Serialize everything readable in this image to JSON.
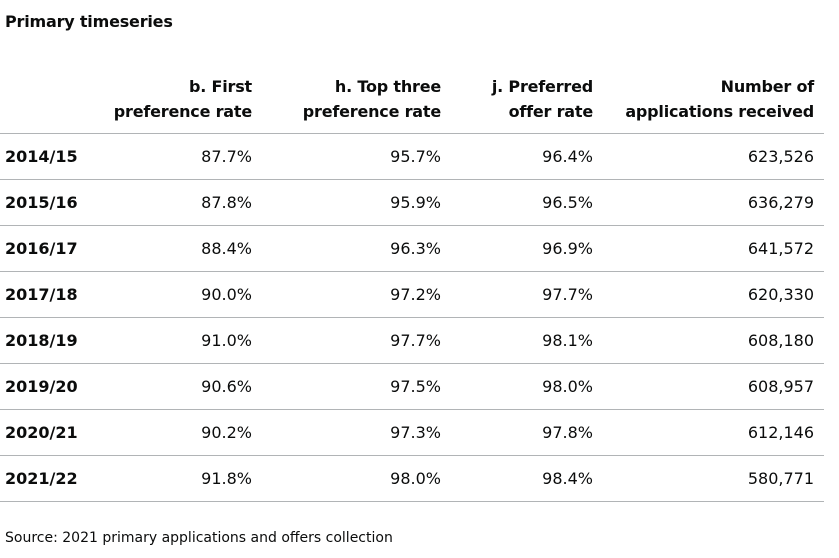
{
  "table": {
    "title": "Primary timeseries",
    "columns": [
      {
        "line1": "b. First",
        "line2": "preference rate"
      },
      {
        "line1": "h. Top three",
        "line2": "preference rate"
      },
      {
        "line1": "j. Preferred",
        "line2": "offer rate"
      },
      {
        "line1": "Number of",
        "line2": "applications received"
      }
    ],
    "rows": [
      {
        "year": "2014/15",
        "first": "87.7%",
        "top3": "95.7%",
        "preferred": "96.4%",
        "apps": "623,526"
      },
      {
        "year": "2015/16",
        "first": "87.8%",
        "top3": "95.9%",
        "preferred": "96.5%",
        "apps": "636,279"
      },
      {
        "year": "2016/17",
        "first": "88.4%",
        "top3": "96.3%",
        "preferred": "96.9%",
        "apps": "641,572"
      },
      {
        "year": "2017/18",
        "first": "90.0%",
        "top3": "97.2%",
        "preferred": "97.7%",
        "apps": "620,330"
      },
      {
        "year": "2018/19",
        "first": "91.0%",
        "top3": "97.7%",
        "preferred": "98.1%",
        "apps": "608,180"
      },
      {
        "year": "2019/20",
        "first": "90.6%",
        "top3": "97.5%",
        "preferred": "98.0%",
        "apps": "608,957"
      },
      {
        "year": "2020/21",
        "first": "90.2%",
        "top3": "97.3%",
        "preferred": "97.8%",
        "apps": "612,146"
      },
      {
        "year": "2021/22",
        "first": "91.8%",
        "top3": "98.0%",
        "preferred": "98.4%",
        "apps": "580,771"
      }
    ],
    "source": "Source: 2021 primary applications and offers collection"
  },
  "colors": {
    "text": "#0b0c0c",
    "rule": "#b1b4b6",
    "background": "#ffffff"
  }
}
